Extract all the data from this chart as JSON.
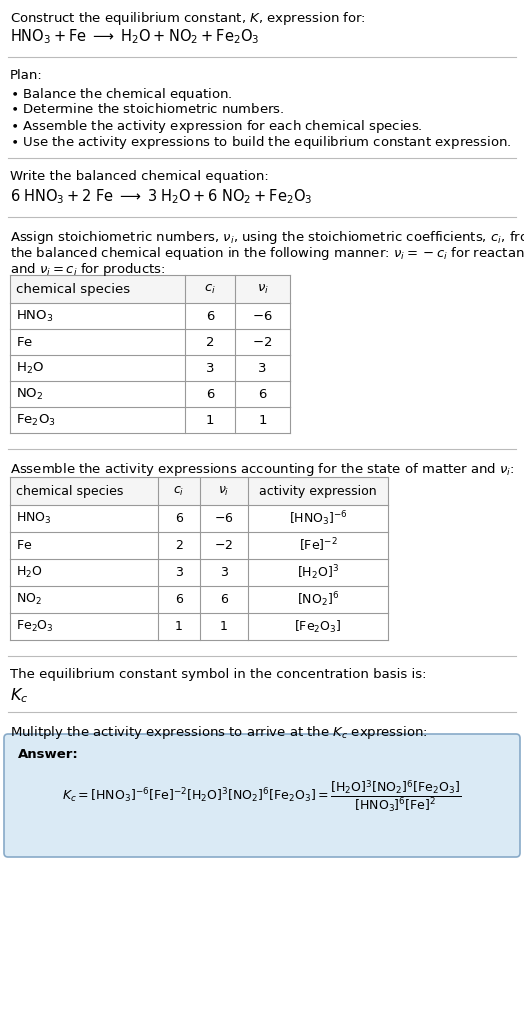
{
  "bg_color": "#ffffff",
  "answer_box_color": "#daeaf5",
  "line_color": "#bbbbbb",
  "text_color": "#000000",
  "fs": 9.5,
  "table_fs": 9.5,
  "sections": [
    {
      "type": "text",
      "lines": [
        "Construct the equilibrium constant, $K$, expression for:",
        "$\\mathrm{HNO_3 + Fe \\;\\longrightarrow\\; H_2O + NO_2 + Fe_2O_3}$"
      ],
      "line_after": true
    },
    {
      "type": "text",
      "lines": [
        "Plan:",
        "$\\bullet$ Balance the chemical equation.",
        "$\\bullet$ Determine the stoichiometric numbers.",
        "$\\bullet$ Assemble the activity expression for each chemical species.",
        "$\\bullet$ Use the activity expressions to build the equilibrium constant expression."
      ],
      "line_after": true
    },
    {
      "type": "text",
      "lines": [
        "Write the balanced chemical equation:",
        "$\\mathrm{6\\; HNO_3 + 2\\; Fe \\;\\longrightarrow\\; 3\\; H_2O + 6\\; NO_2 + Fe_2O_3}$"
      ],
      "line_after": true
    },
    {
      "type": "text_then_table1",
      "header_lines": [
        "Assign stoichiometric numbers, $\\nu_i$, using the stoichiometric coefficients, $c_i$, from",
        "the balanced chemical equation in the following manner: $\\nu_i = -c_i$ for reactants",
        "and $\\nu_i = c_i$ for products:"
      ],
      "line_after": true
    },
    {
      "type": "text_then_table2",
      "header_lines": [
        "Assemble the activity expressions accounting for the state of matter and $\\nu_i$:"
      ],
      "line_after": true
    },
    {
      "type": "text",
      "lines": [
        "The equilibrium constant symbol in the concentration basis is:",
        "$K_c$"
      ],
      "line_after": true
    },
    {
      "type": "answer",
      "header": "Mulitply the activity expressions to arrive at the $K_c$ expression:"
    }
  ],
  "table1_cols": [
    "chemical species",
    "$c_i$",
    "$\\nu_i$"
  ],
  "table1_data": [
    [
      "$\\mathrm{HNO_3}$",
      "6",
      "$-6$"
    ],
    [
      "$\\mathrm{Fe}$",
      "2",
      "$-2$"
    ],
    [
      "$\\mathrm{H_2O}$",
      "3",
      "3"
    ],
    [
      "$\\mathrm{NO_2}$",
      "6",
      "6"
    ],
    [
      "$\\mathrm{Fe_2O_3}$",
      "1",
      "1"
    ]
  ],
  "table2_cols": [
    "chemical species",
    "$c_i$",
    "$\\nu_i$",
    "activity expression"
  ],
  "table2_data": [
    [
      "$\\mathrm{HNO_3}$",
      "6",
      "$-6$",
      "$[\\mathrm{HNO_3}]^{-6}$"
    ],
    [
      "$\\mathrm{Fe}$",
      "2",
      "$-2$",
      "$[\\mathrm{Fe}]^{-2}$"
    ],
    [
      "$\\mathrm{H_2O}$",
      "3",
      "3",
      "$[\\mathrm{H_2O}]^3$"
    ],
    [
      "$\\mathrm{NO_2}$",
      "6",
      "6",
      "$[\\mathrm{NO_2}]^6$"
    ],
    [
      "$\\mathrm{Fe_2O_3}$",
      "1",
      "1",
      "$[\\mathrm{Fe_2O_3}]$"
    ]
  ],
  "answer_line1": "$K_c = [\\mathrm{HNO_3}]^{-6}\\,[\\mathrm{Fe}]^{-2}\\,[\\mathrm{H_2O}]^3\\,[\\mathrm{NO_2}]^6\\,[\\mathrm{Fe_2O_3}] = \\dfrac{[\\mathrm{H_2O}]^3\\,[\\mathrm{NO_2}]^6\\,[\\mathrm{Fe_2O_3}]}{[\\mathrm{HNO_3}]^6\\,[\\mathrm{Fe}]^2}$"
}
